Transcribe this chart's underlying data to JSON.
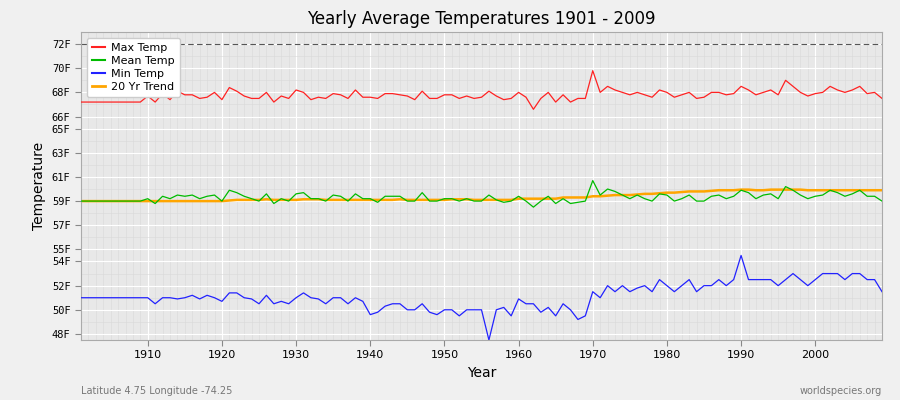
{
  "title": "Yearly Average Temperatures 1901 - 2009",
  "xlabel": "Year",
  "ylabel": "Temperature",
  "subtitle_left": "Latitude 4.75 Longitude -74.25",
  "subtitle_right": "worldspecies.org",
  "years": [
    1901,
    1902,
    1903,
    1904,
    1905,
    1906,
    1907,
    1908,
    1909,
    1910,
    1911,
    1912,
    1913,
    1914,
    1915,
    1916,
    1917,
    1918,
    1919,
    1920,
    1921,
    1922,
    1923,
    1924,
    1925,
    1926,
    1927,
    1928,
    1929,
    1930,
    1931,
    1932,
    1933,
    1934,
    1935,
    1936,
    1937,
    1938,
    1939,
    1940,
    1941,
    1942,
    1943,
    1944,
    1945,
    1946,
    1947,
    1948,
    1949,
    1950,
    1951,
    1952,
    1953,
    1954,
    1955,
    1956,
    1957,
    1958,
    1959,
    1960,
    1961,
    1962,
    1963,
    1964,
    1965,
    1966,
    1967,
    1968,
    1969,
    1970,
    1971,
    1972,
    1973,
    1974,
    1975,
    1976,
    1977,
    1978,
    1979,
    1980,
    1981,
    1982,
    1983,
    1984,
    1985,
    1986,
    1987,
    1988,
    1989,
    1990,
    1991,
    1992,
    1993,
    1994,
    1995,
    1996,
    1997,
    1998,
    1999,
    2000,
    2001,
    2002,
    2003,
    2004,
    2005,
    2006,
    2007,
    2008,
    2009
  ],
  "max_temp": [
    67.2,
    67.2,
    67.2,
    67.2,
    67.2,
    67.2,
    67.2,
    67.2,
    67.2,
    67.7,
    67.2,
    67.9,
    67.4,
    68.1,
    67.8,
    67.8,
    67.5,
    67.6,
    68.0,
    67.4,
    68.4,
    68.1,
    67.7,
    67.5,
    67.5,
    68.0,
    67.2,
    67.7,
    67.5,
    68.2,
    68.0,
    67.4,
    67.6,
    67.5,
    67.9,
    67.8,
    67.5,
    68.2,
    67.6,
    67.6,
    67.5,
    67.9,
    67.9,
    67.8,
    67.7,
    67.4,
    68.1,
    67.5,
    67.5,
    67.8,
    67.8,
    67.5,
    67.7,
    67.5,
    67.6,
    68.1,
    67.7,
    67.4,
    67.5,
    68.0,
    67.6,
    66.6,
    67.5,
    68.0,
    67.2,
    67.8,
    67.2,
    67.5,
    67.5,
    69.8,
    68.0,
    68.5,
    68.2,
    68.0,
    67.8,
    68.0,
    67.8,
    67.6,
    68.2,
    68.0,
    67.6,
    67.8,
    68.0,
    67.5,
    67.6,
    68.0,
    68.0,
    67.8,
    67.9,
    68.5,
    68.2,
    67.8,
    68.0,
    68.2,
    67.8,
    69.0,
    68.5,
    68.0,
    67.7,
    67.9,
    68.0,
    68.5,
    68.2,
    68.0,
    68.2,
    68.5,
    67.9,
    68.0,
    67.5
  ],
  "mean_temp": [
    59.0,
    59.0,
    59.0,
    59.0,
    59.0,
    59.0,
    59.0,
    59.0,
    59.0,
    59.2,
    58.8,
    59.4,
    59.2,
    59.5,
    59.4,
    59.5,
    59.2,
    59.4,
    59.5,
    59.0,
    59.9,
    59.7,
    59.4,
    59.2,
    59.0,
    59.6,
    58.8,
    59.2,
    59.0,
    59.6,
    59.7,
    59.2,
    59.2,
    59.0,
    59.5,
    59.4,
    59.0,
    59.6,
    59.2,
    59.2,
    58.9,
    59.4,
    59.4,
    59.4,
    59.0,
    59.0,
    59.7,
    59.0,
    59.0,
    59.2,
    59.2,
    59.0,
    59.2,
    59.0,
    59.0,
    59.5,
    59.1,
    58.9,
    59.0,
    59.4,
    59.0,
    58.5,
    59.0,
    59.4,
    58.8,
    59.2,
    58.8,
    58.9,
    59.0,
    60.7,
    59.5,
    60.0,
    59.8,
    59.5,
    59.2,
    59.5,
    59.2,
    59.0,
    59.6,
    59.5,
    59.0,
    59.2,
    59.5,
    59.0,
    59.0,
    59.4,
    59.5,
    59.2,
    59.4,
    59.9,
    59.7,
    59.2,
    59.5,
    59.6,
    59.2,
    60.2,
    59.9,
    59.5,
    59.2,
    59.4,
    59.5,
    59.9,
    59.7,
    59.4,
    59.6,
    59.9,
    59.4,
    59.4,
    59.0
  ],
  "min_temp": [
    51.0,
    51.0,
    51.0,
    51.0,
    51.0,
    51.0,
    51.0,
    51.0,
    51.0,
    51.0,
    50.5,
    51.0,
    51.0,
    50.9,
    51.0,
    51.2,
    50.9,
    51.2,
    51.0,
    50.7,
    51.4,
    51.4,
    51.0,
    50.9,
    50.5,
    51.2,
    50.5,
    50.7,
    50.5,
    51.0,
    51.4,
    51.0,
    50.9,
    50.5,
    51.0,
    51.0,
    50.5,
    51.0,
    50.7,
    49.6,
    49.8,
    50.3,
    50.5,
    50.5,
    50.0,
    50.0,
    50.5,
    49.8,
    49.6,
    50.0,
    50.0,
    49.5,
    50.0,
    50.0,
    50.0,
    47.5,
    50.0,
    50.2,
    49.5,
    50.9,
    50.5,
    50.5,
    49.8,
    50.2,
    49.5,
    50.5,
    50.0,
    49.2,
    49.5,
    51.5,
    51.0,
    52.0,
    51.5,
    52.0,
    51.5,
    51.8,
    52.0,
    51.5,
    52.5,
    52.0,
    51.5,
    52.0,
    52.5,
    51.5,
    52.0,
    52.0,
    52.5,
    52.0,
    52.5,
    54.5,
    52.5,
    52.5,
    52.5,
    52.5,
    52.0,
    52.5,
    53.0,
    52.5,
    52.0,
    52.5,
    53.0,
    53.0,
    53.0,
    52.5,
    53.0,
    53.0,
    52.5,
    52.5,
    51.5
  ],
  "trend_20yr": [
    59.0,
    59.0,
    59.0,
    59.0,
    59.0,
    59.0,
    59.0,
    59.0,
    59.0,
    59.0,
    59.0,
    59.0,
    59.0,
    59.0,
    59.0,
    59.0,
    59.0,
    59.0,
    59.0,
    59.0,
    59.05,
    59.1,
    59.1,
    59.1,
    59.1,
    59.15,
    59.1,
    59.1,
    59.1,
    59.1,
    59.15,
    59.15,
    59.15,
    59.1,
    59.1,
    59.1,
    59.1,
    59.1,
    59.1,
    59.1,
    59.1,
    59.1,
    59.1,
    59.15,
    59.1,
    59.1,
    59.1,
    59.1,
    59.1,
    59.1,
    59.15,
    59.15,
    59.15,
    59.1,
    59.1,
    59.1,
    59.1,
    59.1,
    59.1,
    59.2,
    59.2,
    59.2,
    59.2,
    59.2,
    59.2,
    59.3,
    59.3,
    59.3,
    59.3,
    59.4,
    59.4,
    59.45,
    59.5,
    59.5,
    59.5,
    59.55,
    59.6,
    59.6,
    59.65,
    59.7,
    59.7,
    59.75,
    59.8,
    59.8,
    59.8,
    59.85,
    59.9,
    59.9,
    59.9,
    59.95,
    59.95,
    59.9,
    59.9,
    59.95,
    59.95,
    59.95,
    59.95,
    59.95,
    59.9,
    59.9,
    59.9,
    59.9,
    59.9,
    59.9,
    59.9,
    59.9,
    59.9,
    59.9,
    59.9
  ],
  "yticks": [
    48,
    50,
    52,
    54,
    55,
    57,
    59,
    61,
    63,
    65,
    66,
    68,
    70,
    72
  ],
  "ytick_labels": [
    "48F",
    "50F",
    "52F",
    "54F",
    "55F",
    "57F",
    "59F",
    "61F",
    "63F",
    "65F",
    "66F",
    "68F",
    "70F",
    "72F"
  ],
  "xticks": [
    1910,
    1920,
    1930,
    1940,
    1950,
    1960,
    1970,
    1980,
    1990,
    2000
  ],
  "ymin": 47.5,
  "ymax": 73.0,
  "xmin": 1901,
  "xmax": 2009,
  "bg_color": "#f0f0f0",
  "plot_bg_color": "#e8e8e8",
  "max_color": "#ff2222",
  "mean_color": "#00bb00",
  "min_color": "#2222ff",
  "trend_color": "#ffa500",
  "hline_val": 72.0,
  "hline_color": "#555555",
  "grid_color": "#ffffff",
  "minor_grid_color": "#d8d8d8"
}
